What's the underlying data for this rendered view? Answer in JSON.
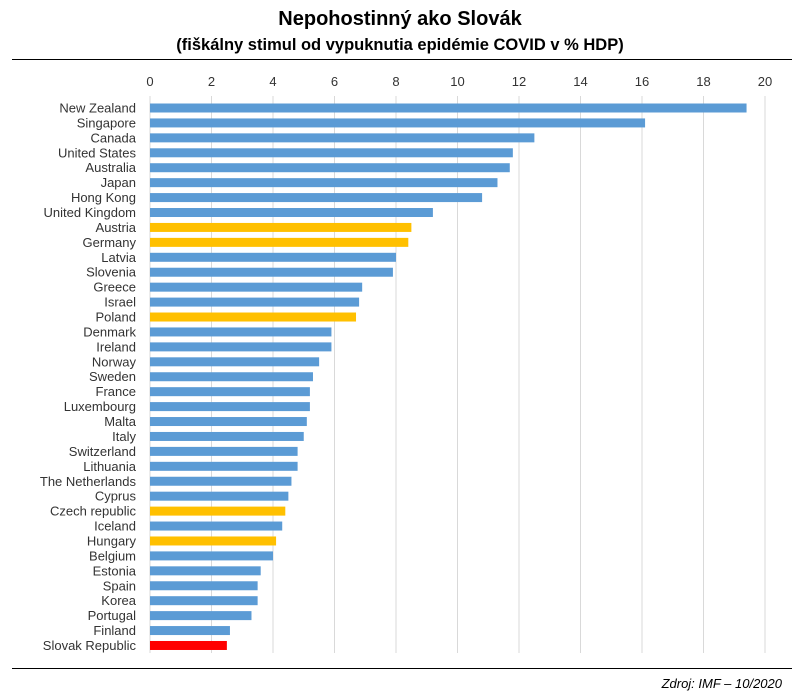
{
  "title": "Nepohostinný ako Slovák",
  "subtitle": "(fiškálny stimul od vypuknutia epidémie COVID v % HDP)",
  "source": "Zdroj: IMF – 10/2020",
  "colors": {
    "default": "#5B9BD5",
    "highlight": "#FFC000",
    "slovakia": "#FF0000",
    "grid": "#D9D9D9"
  },
  "chart_data": {
    "type": "bar",
    "orientation": "horizontal",
    "xlim": [
      0,
      20
    ],
    "xticks": [
      0,
      2,
      4,
      6,
      8,
      10,
      12,
      14,
      16,
      18,
      20
    ],
    "x_axis_position": "top",
    "grid": true,
    "categories": [
      "New Zealand",
      "Singapore",
      "Canada",
      "United States",
      "Australia",
      "Japan",
      "Hong Kong ",
      "United Kingdom",
      "Austria",
      "Germany",
      "Latvia",
      "Slovenia",
      "Greece",
      "Israel",
      "Poland",
      "Denmark",
      "Ireland",
      "Norway",
      "Sweden",
      "France",
      "Luxembourg",
      "Malta",
      "Italy",
      "Switzerland",
      "Lithuania",
      "The Netherlands",
      "Cyprus",
      "Czech republic",
      "Iceland",
      "Hungary",
      "Belgium",
      "Estonia",
      "Spain",
      "Korea",
      "Portugal",
      "Finland",
      "Slovak Republic"
    ],
    "values": [
      19.4,
      16.1,
      12.5,
      11.8,
      11.7,
      11.3,
      10.8,
      9.2,
      8.5,
      8.4,
      8.0,
      7.9,
      6.9,
      6.8,
      6.7,
      5.9,
      5.9,
      5.5,
      5.3,
      5.2,
      5.2,
      5.1,
      5.0,
      4.8,
      4.8,
      4.6,
      4.5,
      4.4,
      4.3,
      4.1,
      4.0,
      3.6,
      3.5,
      3.5,
      3.3,
      2.6,
      2.5
    ],
    "bar_colors": [
      "default",
      "default",
      "default",
      "default",
      "default",
      "default",
      "default",
      "default",
      "highlight",
      "highlight",
      "default",
      "default",
      "default",
      "default",
      "highlight",
      "default",
      "default",
      "default",
      "default",
      "default",
      "default",
      "default",
      "default",
      "default",
      "default",
      "default",
      "default",
      "highlight",
      "default",
      "highlight",
      "default",
      "default",
      "default",
      "default",
      "default",
      "default",
      "slovakia"
    ]
  }
}
